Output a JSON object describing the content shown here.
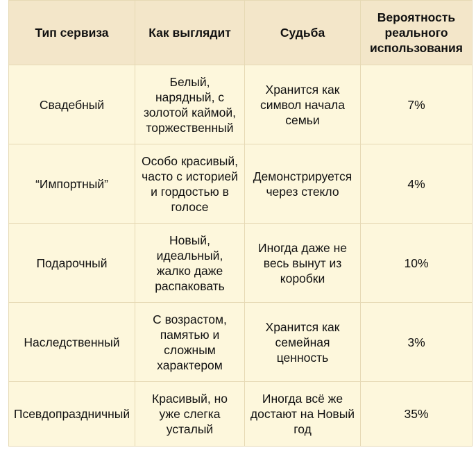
{
  "table": {
    "headers": [
      "Тип сервиза",
      "Как выглядит",
      "Судьба",
      "Вероятность\nреального\nиспользования"
    ],
    "rows": [
      {
        "type": "Свадебный",
        "look": "Белый,\nнарядный, с\nзолотой каймой,\nторжественный",
        "fate": "Хранится как\nсимвол начала\nсемьи",
        "probability": "7%"
      },
      {
        "type": "“Импортный”",
        "look": "Особо красивый,\nчасто с историей\nи гордостью в\nголосе",
        "fate": "Демонстрируется\nчерез стекло",
        "probability": "4%"
      },
      {
        "type": "Подарочный",
        "look": "Новый,\nидеальный,\nжалко даже\nраспаковать",
        "fate": "Иногда даже не\nвесь вынут из\nкоробки",
        "probability": "10%"
      },
      {
        "type": "Наследственный",
        "look": "С возрастом,\nпамятью и\nсложным\nхарактером",
        "fate": "Хранится как\nсемейная\nценность",
        "probability": "3%"
      },
      {
        "type": "Псевдопраздничный",
        "look": "Красивый, но\nуже слегка\nусталый",
        "fate": "Иногда всё же\nдостают на Новый\nгод",
        "probability": "35%"
      }
    ]
  },
  "colors": {
    "header_bg": "#f3e6c9",
    "body_bg": "#fdf7dc",
    "border": "#e6d9b4"
  }
}
